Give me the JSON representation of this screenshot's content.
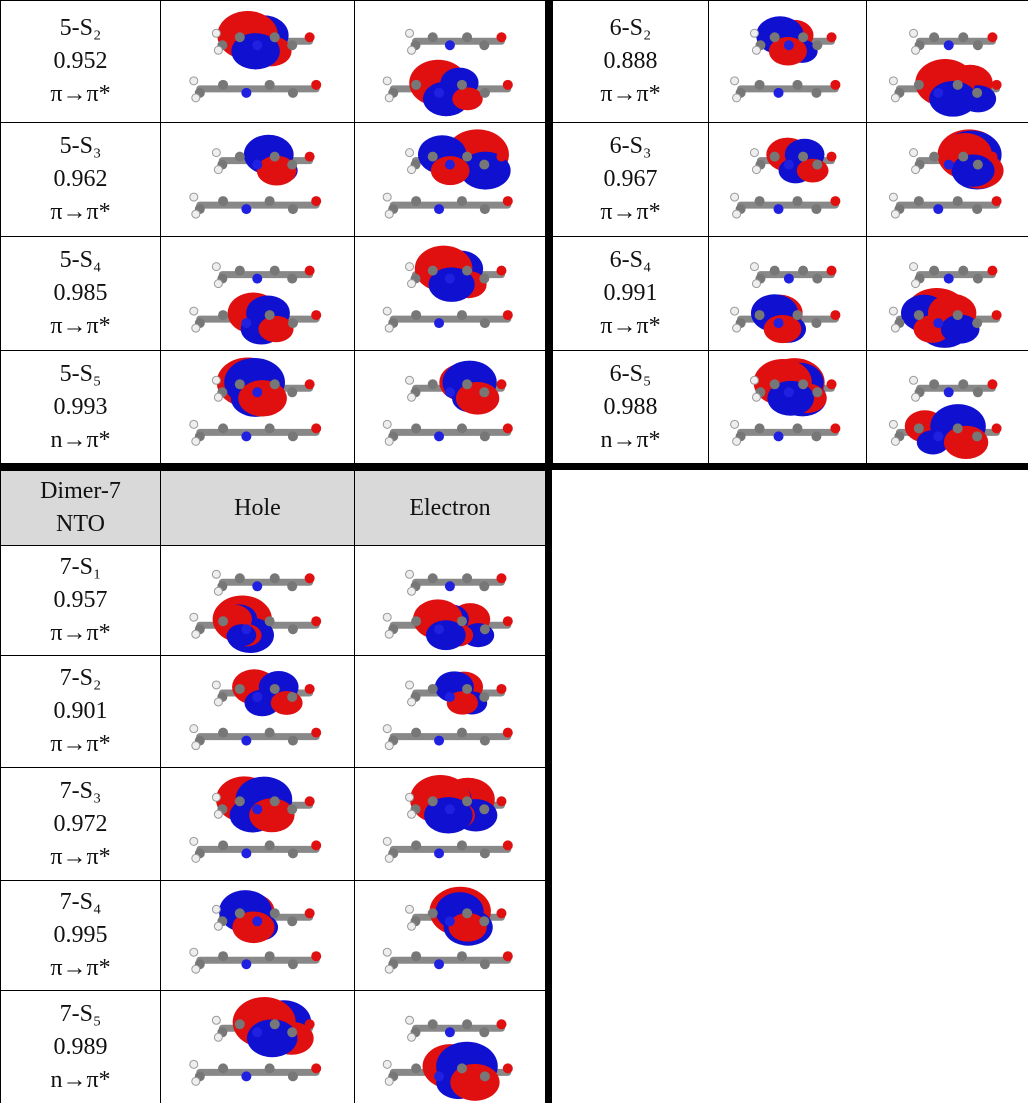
{
  "dimer5": {
    "rows": [
      {
        "state": "5-S₂",
        "value": "0.952",
        "transition": "π→π*"
      },
      {
        "state": "5-S₃",
        "value": "0.962",
        "transition": "π→π*"
      },
      {
        "state": "5-S₄",
        "value": "0.985",
        "transition": "π→π*"
      },
      {
        "state": "5-S₅",
        "value": "0.993",
        "transition": "n→π*"
      }
    ]
  },
  "dimer6": {
    "rows": [
      {
        "state": "6-S₂",
        "value": "0.888",
        "transition": "π→π*"
      },
      {
        "state": "6-S₃",
        "value": "0.967",
        "transition": "π→π*"
      },
      {
        "state": "6-S₄",
        "value": "0.991",
        "transition": "π→π*"
      },
      {
        "state": "6-S₅",
        "value": "0.988",
        "transition": "n→π*"
      }
    ]
  },
  "dimer7": {
    "header": {
      "label": [
        "Dimer-7",
        "NTO"
      ],
      "hole": "Hole",
      "electron": "Electron"
    },
    "rows": [
      {
        "state": "7-S₁",
        "value": "0.957",
        "transition": "π→π*"
      },
      {
        "state": "7-S₂",
        "value": "0.901",
        "transition": "π→π*"
      },
      {
        "state": "7-S₃",
        "value": "0.972",
        "transition": "π→π*"
      },
      {
        "state": "7-S₄",
        "value": "0.995",
        "transition": "π→π*"
      },
      {
        "state": "7-S₅",
        "value": "0.989",
        "transition": "n→π*"
      }
    ]
  }
}
